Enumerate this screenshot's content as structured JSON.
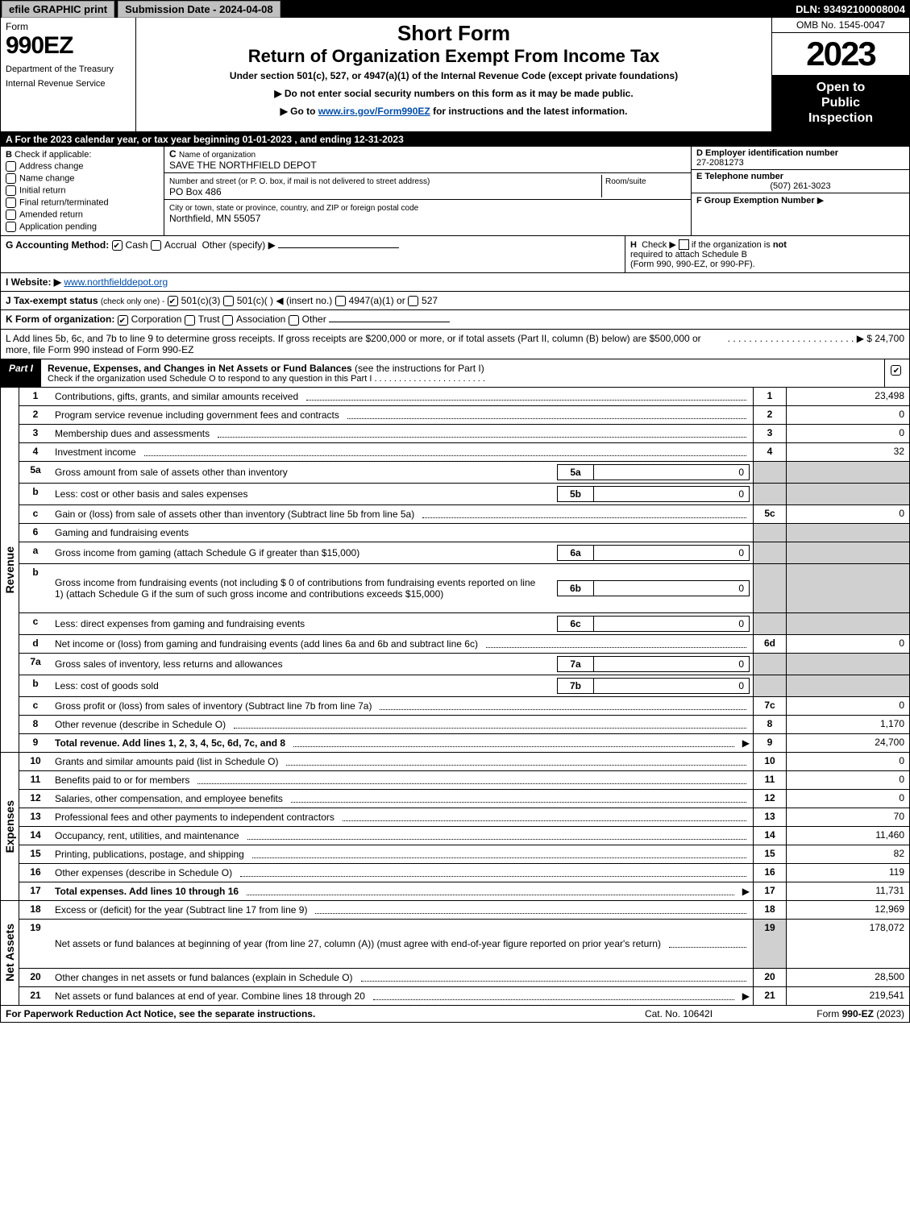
{
  "top_bar": {
    "efile": "efile GRAPHIC print",
    "submission": "Submission Date - 2024-04-08",
    "dln": "DLN: 93492100008004"
  },
  "header": {
    "form_word": "Form",
    "form_num": "990EZ",
    "dept": "Department of the Treasury",
    "irs": "Internal Revenue Service",
    "short": "Short Form",
    "return": "Return of Organization Exempt From Income Tax",
    "under": "Under section 501(c), 527, or 4947(a)(1) of the Internal Revenue Code (except private foundations)",
    "note1": "▶ Do not enter social security numbers on this form as it may be made public.",
    "note2_pre": "▶ Go to ",
    "note2_link": "www.irs.gov/Form990EZ",
    "note2_post": " for instructions and the latest information.",
    "omb": "OMB No. 1545-0047",
    "year": "2023",
    "open1": "Open to",
    "open2": "Public",
    "open3": "Inspection"
  },
  "line_a": "A  For the 2023 calendar year, or tax year beginning 01-01-2023 , and ending 12-31-2023",
  "section_b": {
    "title": "B",
    "subtitle": "Check if applicable:",
    "items": [
      "Address change",
      "Name change",
      "Initial return",
      "Final return/terminated",
      "Amended return",
      "Application pending"
    ]
  },
  "section_c": {
    "label_c": "C",
    "name_label": "Name of organization",
    "name": "SAVE THE NORTHFIELD DEPOT",
    "addr_label": "Number and street (or P. O. box, if mail is not delivered to street address)",
    "room_label": "Room/suite",
    "addr": "PO Box 486",
    "city_label": "City or town, state or province, country, and ZIP or foreign postal code",
    "city": "Northfield, MN  55057"
  },
  "section_d": {
    "d_label": "D Employer identification number",
    "ein": "27-2081273",
    "e_label": "E Telephone number",
    "phone": "(507) 261-3023",
    "f_label": "F Group Exemption Number",
    "f_arrow": "▶"
  },
  "line_g": {
    "label": "G Accounting Method:",
    "cash": "Cash",
    "accrual": "Accrual",
    "other": "Other (specify) ▶"
  },
  "line_h": {
    "label": "H",
    "text1": "Check ▶",
    "text2": "if the organization is",
    "not": "not",
    "text3": "required to attach Schedule B",
    "text4": "(Form 990, 990-EZ, or 990-PF)."
  },
  "line_i": {
    "label": "I Website: ▶",
    "url": "www.northfielddepot.org"
  },
  "line_j": {
    "label": "J Tax-exempt status",
    "hint": "(check only one) -",
    "opt1": "501(c)(3)",
    "opt2": "501(c)( )",
    "insert": "◀ (insert no.)",
    "opt3": "4947(a)(1) or",
    "opt4": "527"
  },
  "line_k": {
    "label": "K Form of organization:",
    "opts": [
      "Corporation",
      "Trust",
      "Association",
      "Other"
    ]
  },
  "line_l": {
    "text": "L Add lines 5b, 6c, and 7b to line 9 to determine gross receipts. If gross receipts are $200,000 or more, or if total assets (Part II, column (B) below) are $500,000 or more, file Form 990 instead of Form 990-EZ",
    "arrow": "▶ $",
    "amount": "24,700"
  },
  "part1": {
    "tab": "Part I",
    "title": "Revenue, Expenses, and Changes in Net Assets or Fund Balances",
    "title_hint": "(see the instructions for Part I)",
    "subtitle": "Check if the organization used Schedule O to respond to any question in this Part I"
  },
  "side_labels": {
    "revenue": "Revenue",
    "expenses": "Expenses",
    "netassets": "Net Assets"
  },
  "revenue_lines": [
    {
      "n": "1",
      "t": "Contributions, gifts, grants, and similar amounts received",
      "rn": "1",
      "v": "23,498"
    },
    {
      "n": "2",
      "t": "Program service revenue including government fees and contracts",
      "rn": "2",
      "v": "0"
    },
    {
      "n": "3",
      "t": "Membership dues and assessments",
      "rn": "3",
      "v": "0"
    },
    {
      "n": "4",
      "t": "Investment income",
      "rn": "4",
      "v": "32"
    },
    {
      "n": "5a",
      "t": "Gross amount from sale of assets other than inventory",
      "in": "5a",
      "iv": "0",
      "shade": true
    },
    {
      "n": "b",
      "t": "Less: cost or other basis and sales expenses",
      "in": "5b",
      "iv": "0",
      "shade": true
    },
    {
      "n": "c",
      "t": "Gain or (loss) from sale of assets other than inventory (Subtract line 5b from line 5a)",
      "rn": "5c",
      "v": "0"
    },
    {
      "n": "6",
      "t": "Gaming and fundraising events",
      "shade": true,
      "noamt": true
    },
    {
      "n": "a",
      "t": "Gross income from gaming (attach Schedule G if greater than $15,000)",
      "in": "6a",
      "iv": "0",
      "shade": true
    },
    {
      "n": "b",
      "t": "Gross income from fundraising events (not including $ 0 of contributions from fundraising events reported on line 1) (attach Schedule G if the sum of such gross income and contributions exceeds $15,000)",
      "in": "6b",
      "iv": "0",
      "shade": true,
      "tall": true
    },
    {
      "n": "c",
      "t": "Less: direct expenses from gaming and fundraising events",
      "in": "6c",
      "iv": "0",
      "shade": true
    },
    {
      "n": "d",
      "t": "Net income or (loss) from gaming and fundraising events (add lines 6a and 6b and subtract line 6c)",
      "rn": "6d",
      "v": "0"
    },
    {
      "n": "7a",
      "t": "Gross sales of inventory, less returns and allowances",
      "in": "7a",
      "iv": "0",
      "shade": true
    },
    {
      "n": "b",
      "t": "Less: cost of goods sold",
      "in": "7b",
      "iv": "0",
      "shade": true
    },
    {
      "n": "c",
      "t": "Gross profit or (loss) from sales of inventory (Subtract line 7b from line 7a)",
      "rn": "7c",
      "v": "0"
    },
    {
      "n": "8",
      "t": "Other revenue (describe in Schedule O)",
      "rn": "8",
      "v": "1,170"
    },
    {
      "n": "9",
      "t": "Total revenue. Add lines 1, 2, 3, 4, 5c, 6d, 7c, and 8",
      "rn": "9",
      "v": "24,700",
      "bold": true,
      "arrow": true
    }
  ],
  "expense_lines": [
    {
      "n": "10",
      "t": "Grants and similar amounts paid (list in Schedule O)",
      "rn": "10",
      "v": "0"
    },
    {
      "n": "11",
      "t": "Benefits paid to or for members",
      "rn": "11",
      "v": "0"
    },
    {
      "n": "12",
      "t": "Salaries, other compensation, and employee benefits",
      "rn": "12",
      "v": "0"
    },
    {
      "n": "13",
      "t": "Professional fees and other payments to independent contractors",
      "rn": "13",
      "v": "70"
    },
    {
      "n": "14",
      "t": "Occupancy, rent, utilities, and maintenance",
      "rn": "14",
      "v": "11,460"
    },
    {
      "n": "15",
      "t": "Printing, publications, postage, and shipping",
      "rn": "15",
      "v": "82"
    },
    {
      "n": "16",
      "t": "Other expenses (describe in Schedule O)",
      "rn": "16",
      "v": "119"
    },
    {
      "n": "17",
      "t": "Total expenses. Add lines 10 through 16",
      "rn": "17",
      "v": "11,731",
      "bold": true,
      "arrow": true
    }
  ],
  "netasset_lines": [
    {
      "n": "18",
      "t": "Excess or (deficit) for the year (Subtract line 17 from line 9)",
      "rn": "18",
      "v": "12,969"
    },
    {
      "n": "19",
      "t": "Net assets or fund balances at beginning of year (from line 27, column (A)) (must agree with end-of-year figure reported on prior year's return)",
      "rn": "19",
      "v": "178,072",
      "tall": true,
      "shade_num": true
    },
    {
      "n": "20",
      "t": "Other changes in net assets or fund balances (explain in Schedule O)",
      "rn": "20",
      "v": "28,500"
    },
    {
      "n": "21",
      "t": "Net assets or fund balances at end of year. Combine lines 18 through 20",
      "rn": "21",
      "v": "219,541",
      "arrow": true
    }
  ],
  "footer": {
    "left": "For Paperwork Reduction Act Notice, see the separate instructions.",
    "center": "Cat. No. 10642I",
    "right_pre": "Form ",
    "right_bold": "990-EZ",
    "right_post": " (2023)"
  }
}
